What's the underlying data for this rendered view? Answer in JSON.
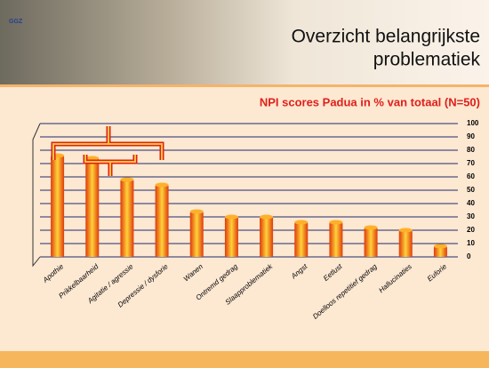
{
  "header": {
    "logo": "GGZ",
    "title_line1": "Overzicht belangrijkste",
    "title_line2": "problematiek"
  },
  "chart_data": {
    "type": "bar",
    "title": "NPI scores Padua in % van totaal (N=50)",
    "categories": [
      "Apothie",
      "Prikkelbaarheid",
      "Agitatie / agressie",
      "Depressie / dysforie",
      "Wanen",
      "Ontremd gedrag",
      "Slaapproblematiek",
      "Angst",
      "Eetlust",
      "Doelloos repetitief gedrag",
      "Hallucinaties",
      "Euforie"
    ],
    "values": [
      76,
      74,
      58,
      54,
      34,
      30,
      30,
      26,
      26,
      22,
      20,
      8
    ],
    "color": "#e03a0a",
    "ylim": [
      0,
      100
    ],
    "yticks": [
      0,
      10,
      20,
      30,
      40,
      50,
      60,
      70,
      80,
      90,
      100
    ],
    "grid": true
  }
}
